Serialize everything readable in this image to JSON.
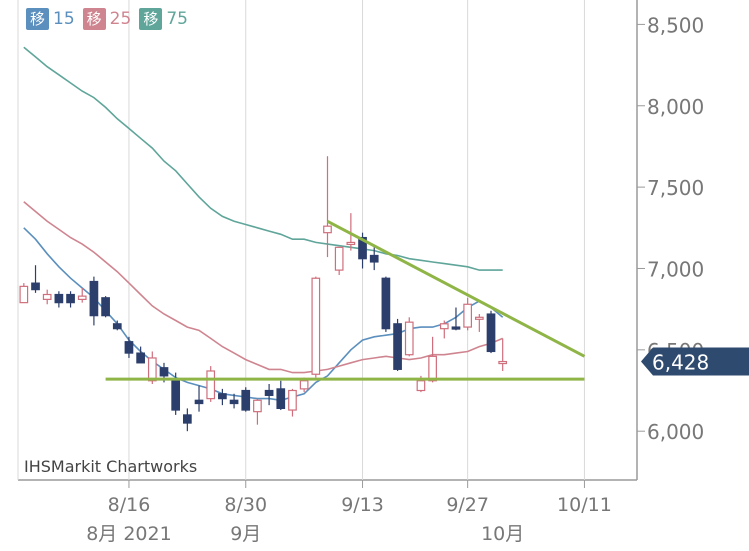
{
  "legend": [
    {
      "badge": "移",
      "label": "15",
      "color": "#5b8fbe"
    },
    {
      "badge": "移",
      "label": "25",
      "color": "#cf8590"
    },
    {
      "badge": "移",
      "label": "75",
      "color": "#5fa59a"
    }
  ],
  "watermark": "IHSMarkit Chartworks",
  "current_value": "6,428",
  "chart_data": {
    "type": "candlestick",
    "y_ticks": [
      {
        "value": 8500,
        "label": "8,500"
      },
      {
        "value": 8000,
        "label": "8,000"
      },
      {
        "value": 7500,
        "label": "7,500"
      },
      {
        "value": 7000,
        "label": "7,000"
      },
      {
        "value": 6500,
        "label": "6,500"
      },
      {
        "value": 6000,
        "label": "6,000"
      }
    ],
    "ylim": [
      5700,
      8650
    ],
    "x_ticks": [
      {
        "index": 5,
        "label": "8/16"
      },
      {
        "index": 15,
        "label": "8/30"
      },
      {
        "index": 25,
        "label": "9/13"
      },
      {
        "index": 34,
        "label": "9/27"
      },
      {
        "index": 44,
        "label": "10/11"
      }
    ],
    "x_secondary": [
      {
        "index": 5,
        "label": "8月 2021"
      },
      {
        "index": 15,
        "label": "9月"
      },
      {
        "index": 37,
        "label": "10月"
      }
    ],
    "xlim": [
      -4.5,
      48.5
    ],
    "candles": [
      {
        "i": -4,
        "o": 6790,
        "h": 6910,
        "l": 6790,
        "c": 6890
      },
      {
        "i": -3,
        "o": 6910,
        "h": 7020,
        "l": 6850,
        "c": 6870
      },
      {
        "i": -2,
        "o": 6810,
        "h": 6870,
        "l": 6780,
        "c": 6840
      },
      {
        "i": -1,
        "o": 6840,
        "h": 6860,
        "l": 6760,
        "c": 6790
      },
      {
        "i": 0,
        "o": 6840,
        "h": 6860,
        "l": 6760,
        "c": 6790
      },
      {
        "i": 1,
        "o": 6810,
        "h": 6880,
        "l": 6790,
        "c": 6830
      },
      {
        "i": 2,
        "o": 6920,
        "h": 6950,
        "l": 6650,
        "c": 6710
      },
      {
        "i": 3,
        "o": 6820,
        "h": 6830,
        "l": 6700,
        "c": 6710
      },
      {
        "i": 4,
        "o": 6660,
        "h": 6680,
        "l": 6620,
        "c": 6630
      },
      {
        "i": 5,
        "o": 6550,
        "h": 6580,
        "l": 6450,
        "c": 6480
      },
      {
        "i": 6,
        "o": 6480,
        "h": 6520,
        "l": 6420,
        "c": 6420
      },
      {
        "i": 7,
        "o": 6310,
        "h": 6490,
        "l": 6290,
        "c": 6450
      },
      {
        "i": 8,
        "o": 6390,
        "h": 6420,
        "l": 6300,
        "c": 6340
      },
      {
        "i": 9,
        "o": 6310,
        "h": 6360,
        "l": 6100,
        "c": 6130
      },
      {
        "i": 10,
        "o": 6100,
        "h": 6140,
        "l": 6000,
        "c": 6050
      },
      {
        "i": 11,
        "o": 6190,
        "h": 6280,
        "l": 6120,
        "c": 6170
      },
      {
        "i": 12,
        "o": 6200,
        "h": 6400,
        "l": 6180,
        "c": 6370
      },
      {
        "i": 13,
        "o": 6230,
        "h": 6260,
        "l": 6160,
        "c": 6200
      },
      {
        "i": 14,
        "o": 6190,
        "h": 6230,
        "l": 6140,
        "c": 6170
      },
      {
        "i": 15,
        "o": 6250,
        "h": 6270,
        "l": 6120,
        "c": 6130
      },
      {
        "i": 16,
        "o": 6120,
        "h": 6200,
        "l": 6040,
        "c": 6190
      },
      {
        "i": 17,
        "o": 6250,
        "h": 6290,
        "l": 6160,
        "c": 6220
      },
      {
        "i": 18,
        "o": 6260,
        "h": 6310,
        "l": 6130,
        "c": 6140
      },
      {
        "i": 19,
        "o": 6130,
        "h": 6260,
        "l": 6090,
        "c": 6250
      },
      {
        "i": 20,
        "o": 6260,
        "h": 6330,
        "l": 6240,
        "c": 6310
      },
      {
        "i": 21,
        "o": 6350,
        "h": 6950,
        "l": 6330,
        "c": 6940
      },
      {
        "i": 22,
        "o": 7220,
        "h": 7690,
        "l": 7070,
        "c": 7260
      },
      {
        "i": 23,
        "o": 6990,
        "h": 7130,
        "l": 6960,
        "c": 7130
      },
      {
        "i": 24,
        "o": 7150,
        "h": 7340,
        "l": 7110,
        "c": 7160
      },
      {
        "i": 25,
        "o": 7190,
        "h": 7220,
        "l": 7000,
        "c": 7060
      },
      {
        "i": 26,
        "o": 7080,
        "h": 7130,
        "l": 6990,
        "c": 7040
      },
      {
        "i": 27,
        "o": 6940,
        "h": 6950,
        "l": 6610,
        "c": 6630
      },
      {
        "i": 28,
        "o": 6660,
        "h": 6690,
        "l": 6370,
        "c": 6380
      },
      {
        "i": 29,
        "o": 6470,
        "h": 6700,
        "l": 6460,
        "c": 6670
      },
      {
        "i": 30,
        "o": 6250,
        "h": 6340,
        "l": 6240,
        "c": 6310
      },
      {
        "i": 31,
        "o": 6310,
        "h": 6580,
        "l": 6300,
        "c": 6460
      },
      {
        "i": 32,
        "o": 6630,
        "h": 6680,
        "l": 6570,
        "c": 6660
      },
      {
        "i": 33,
        "o": 6640,
        "h": 6760,
        "l": 6620,
        "c": 6630
      },
      {
        "i": 34,
        "o": 6640,
        "h": 6820,
        "l": 6620,
        "c": 6780
      },
      {
        "i": 35,
        "o": 6690,
        "h": 6720,
        "l": 6610,
        "c": 6700
      },
      {
        "i": 36,
        "o": 6720,
        "h": 6740,
        "l": 6480,
        "c": 6490
      },
      {
        "i": 37,
        "o": 6420,
        "h": 6570,
        "l": 6370,
        "c": 6428
      }
    ],
    "series": [
      {
        "name": "15",
        "color": "#5b8fbe",
        "points": [
          [
            -4,
            7250
          ],
          [
            -3,
            7180
          ],
          [
            -2,
            7090
          ],
          [
            -1,
            7010
          ],
          [
            0,
            6940
          ],
          [
            1,
            6880
          ],
          [
            2,
            6820
          ],
          [
            3,
            6740
          ],
          [
            4,
            6660
          ],
          [
            5,
            6560
          ],
          [
            6,
            6490
          ],
          [
            7,
            6430
          ],
          [
            8,
            6380
          ],
          [
            9,
            6330
          ],
          [
            10,
            6300
          ],
          [
            11,
            6280
          ],
          [
            12,
            6260
          ],
          [
            13,
            6230
          ],
          [
            14,
            6220
          ],
          [
            15,
            6210
          ],
          [
            16,
            6200
          ],
          [
            17,
            6200
          ],
          [
            18,
            6190
          ],
          [
            19,
            6210
          ],
          [
            20,
            6230
          ],
          [
            21,
            6300
          ],
          [
            22,
            6340
          ],
          [
            23,
            6420
          ],
          [
            24,
            6500
          ],
          [
            25,
            6560
          ],
          [
            26,
            6580
          ],
          [
            27,
            6590
          ],
          [
            28,
            6600
          ],
          [
            29,
            6630
          ],
          [
            30,
            6640
          ],
          [
            31,
            6640
          ],
          [
            32,
            6660
          ],
          [
            33,
            6700
          ],
          [
            34,
            6760
          ],
          [
            35,
            6800
          ],
          [
            36,
            6760
          ],
          [
            37,
            6700
          ]
        ]
      },
      {
        "name": "25",
        "color": "#cf8590",
        "points": [
          [
            -4,
            7410
          ],
          [
            -3,
            7350
          ],
          [
            -2,
            7290
          ],
          [
            -1,
            7240
          ],
          [
            0,
            7190
          ],
          [
            1,
            7150
          ],
          [
            2,
            7100
          ],
          [
            3,
            7040
          ],
          [
            4,
            6980
          ],
          [
            5,
            6910
          ],
          [
            6,
            6840
          ],
          [
            7,
            6770
          ],
          [
            8,
            6720
          ],
          [
            9,
            6680
          ],
          [
            10,
            6640
          ],
          [
            11,
            6620
          ],
          [
            12,
            6570
          ],
          [
            13,
            6520
          ],
          [
            14,
            6480
          ],
          [
            15,
            6440
          ],
          [
            16,
            6410
          ],
          [
            17,
            6380
          ],
          [
            18,
            6380
          ],
          [
            19,
            6360
          ],
          [
            20,
            6360
          ],
          [
            21,
            6370
          ],
          [
            22,
            6380
          ],
          [
            23,
            6400
          ],
          [
            24,
            6420
          ],
          [
            25,
            6440
          ],
          [
            26,
            6450
          ],
          [
            27,
            6460
          ],
          [
            28,
            6450
          ],
          [
            29,
            6440
          ],
          [
            30,
            6450
          ],
          [
            31,
            6470
          ],
          [
            32,
            6470
          ],
          [
            33,
            6480
          ],
          [
            34,
            6490
          ],
          [
            35,
            6520
          ],
          [
            36,
            6540
          ],
          [
            37,
            6570
          ]
        ]
      },
      {
        "name": "75",
        "color": "#5fa59a",
        "points": [
          [
            -4,
            8360
          ],
          [
            -3,
            8300
          ],
          [
            -2,
            8240
          ],
          [
            -1,
            8190
          ],
          [
            0,
            8140
          ],
          [
            1,
            8090
          ],
          [
            2,
            8050
          ],
          [
            3,
            7990
          ],
          [
            4,
            7920
          ],
          [
            5,
            7860
          ],
          [
            6,
            7800
          ],
          [
            7,
            7740
          ],
          [
            8,
            7660
          ],
          [
            9,
            7600
          ],
          [
            10,
            7520
          ],
          [
            11,
            7440
          ],
          [
            12,
            7370
          ],
          [
            13,
            7320
          ],
          [
            14,
            7290
          ],
          [
            15,
            7270
          ],
          [
            16,
            7250
          ],
          [
            17,
            7230
          ],
          [
            18,
            7210
          ],
          [
            19,
            7180
          ],
          [
            20,
            7180
          ],
          [
            21,
            7160
          ],
          [
            22,
            7150
          ],
          [
            23,
            7140
          ],
          [
            24,
            7130
          ],
          [
            25,
            7120
          ],
          [
            26,
            7110
          ],
          [
            27,
            7090
          ],
          [
            28,
            7080
          ],
          [
            29,
            7060
          ],
          [
            30,
            7050
          ],
          [
            31,
            7040
          ],
          [
            32,
            7030
          ],
          [
            33,
            7020
          ],
          [
            34,
            7010
          ],
          [
            35,
            6990
          ],
          [
            36,
            6990
          ],
          [
            37,
            6990
          ]
        ]
      }
    ],
    "trendlines": [
      {
        "color": "#8fb547",
        "from": [
          22,
          7290
        ],
        "to": [
          44,
          6460
        ]
      },
      {
        "color": "#8fb547",
        "from": [
          3,
          6320
        ],
        "to": [
          44,
          6320
        ]
      }
    ],
    "colors": {
      "up": "#cf6e7c",
      "down": "#2c3e6b",
      "axis": "#9a9a9a",
      "grid": "#d9d9d9",
      "label": "#777777",
      "tag": "#2f4a6f"
    }
  }
}
